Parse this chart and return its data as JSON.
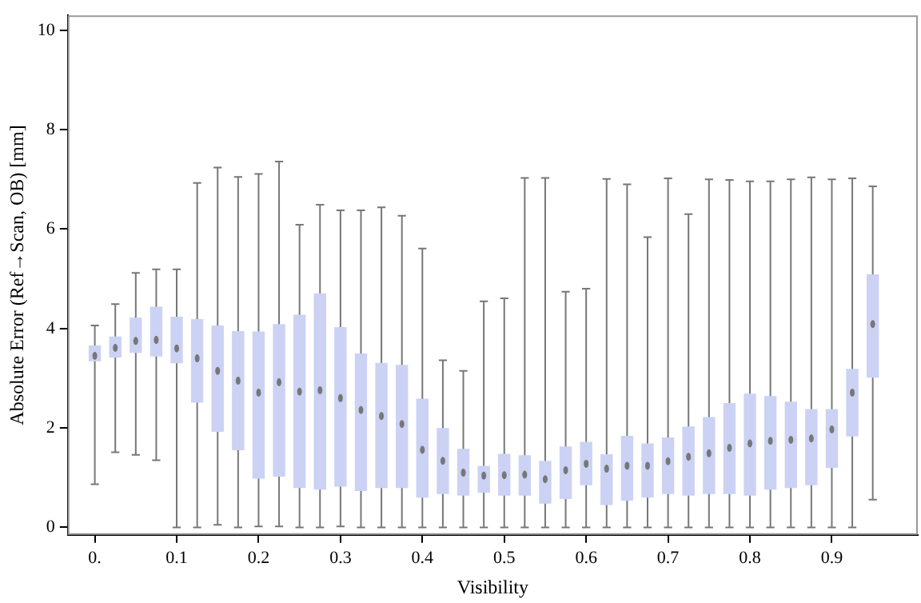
{
  "chart_data": {
    "type": "box",
    "xlabel": "Visibility",
    "ylabel": "Absolute Error (Ref→Scan, OB) [mm]",
    "x": [
      0,
      0.025,
      0.05,
      0.075,
      0.1,
      0.125,
      0.15,
      0.175,
      0.2,
      0.225,
      0.25,
      0.275,
      0.3,
      0.325,
      0.35,
      0.375,
      0.4,
      0.425,
      0.45,
      0.475,
      0.5,
      0.525,
      0.55,
      0.575,
      0.6,
      0.625,
      0.65,
      0.675,
      0.7,
      0.725,
      0.75,
      0.775,
      0.8,
      0.825,
      0.85,
      0.875,
      0.9,
      0.925,
      0.95
    ],
    "color": "#cbd2f4",
    "boxes": [
      {
        "low": 0.87,
        "q1": 3.34,
        "median": 3.45,
        "q3": 3.66,
        "high": 4.06
      },
      {
        "low": 1.51,
        "q1": 3.42,
        "median": 3.61,
        "q3": 3.84,
        "high": 4.49
      },
      {
        "low": 1.46,
        "q1": 3.51,
        "median": 3.75,
        "q3": 4.22,
        "high": 5.12
      },
      {
        "low": 1.35,
        "q1": 3.44,
        "median": 3.77,
        "q3": 4.44,
        "high": 5.19
      },
      {
        "low": 0,
        "q1": 3.3,
        "median": 3.6,
        "q3": 4.24,
        "high": 5.19
      },
      {
        "low": 0,
        "q1": 2.51,
        "median": 3.4,
        "q3": 4.19,
        "high": 6.93
      },
      {
        "low": 0.05,
        "q1": 1.92,
        "median": 3.15,
        "q3": 4.06,
        "high": 7.24
      },
      {
        "low": 0,
        "q1": 1.55,
        "median": 2.95,
        "q3": 3.95,
        "high": 7.05
      },
      {
        "low": 0.02,
        "q1": 0.98,
        "median": 2.71,
        "q3": 3.94,
        "high": 7.11
      },
      {
        "low": 0.02,
        "q1": 1.02,
        "median": 2.92,
        "q3": 4.09,
        "high": 7.36
      },
      {
        "low": 0,
        "q1": 0.79,
        "median": 2.73,
        "q3": 4.28,
        "high": 6.09
      },
      {
        "low": 0,
        "q1": 0.76,
        "median": 2.76,
        "q3": 4.71,
        "high": 6.49
      },
      {
        "low": 0.02,
        "q1": 0.82,
        "median": 2.6,
        "q3": 4.03,
        "high": 6.38
      },
      {
        "low": 0,
        "q1": 0.73,
        "median": 2.36,
        "q3": 3.5,
        "high": 6.38
      },
      {
        "low": 0,
        "q1": 0.79,
        "median": 2.24,
        "q3": 3.31,
        "high": 6.44
      },
      {
        "low": 0,
        "q1": 0.79,
        "median": 2.08,
        "q3": 3.27,
        "high": 6.27
      },
      {
        "low": 0,
        "q1": 0.6,
        "median": 1.56,
        "q3": 2.59,
        "high": 5.61
      },
      {
        "low": 0,
        "q1": 0.67,
        "median": 1.34,
        "q3": 2.0,
        "high": 3.36
      },
      {
        "low": 0,
        "q1": 0.64,
        "median": 1.1,
        "q3": 1.58,
        "high": 3.15
      },
      {
        "low": 0,
        "q1": 0.7,
        "median": 1.04,
        "q3": 1.24,
        "high": 4.55
      },
      {
        "low": 0,
        "q1": 0.64,
        "median": 1.05,
        "q3": 1.48,
        "high": 4.61
      },
      {
        "low": 0,
        "q1": 0.64,
        "median": 1.06,
        "q3": 1.45,
        "high": 7.03
      },
      {
        "low": 0,
        "q1": 0.48,
        "median": 0.97,
        "q3": 1.34,
        "high": 7.03
      },
      {
        "low": 0,
        "q1": 0.57,
        "median": 1.15,
        "q3": 1.63,
        "high": 4.74
      },
      {
        "low": 0,
        "q1": 0.85,
        "median": 1.28,
        "q3": 1.72,
        "high": 4.8
      },
      {
        "low": 0,
        "q1": 0.45,
        "median": 1.18,
        "q3": 1.47,
        "high": 7.01
      },
      {
        "low": 0,
        "q1": 0.54,
        "median": 1.24,
        "q3": 1.84,
        "high": 6.9
      },
      {
        "low": 0,
        "q1": 0.6,
        "median": 1.24,
        "q3": 1.69,
        "high": 5.84
      },
      {
        "low": 0,
        "q1": 0.67,
        "median": 1.33,
        "q3": 1.81,
        "high": 7.02
      },
      {
        "low": 0,
        "q1": 0.64,
        "median": 1.42,
        "q3": 2.03,
        "high": 6.3
      },
      {
        "low": 0,
        "q1": 0.67,
        "median": 1.49,
        "q3": 2.22,
        "high": 7.0
      },
      {
        "low": 0,
        "q1": 0.67,
        "median": 1.6,
        "q3": 2.5,
        "high": 6.99
      },
      {
        "low": 0,
        "q1": 0.64,
        "median": 1.69,
        "q3": 2.69,
        "high": 6.96
      },
      {
        "low": 0,
        "q1": 0.76,
        "median": 1.74,
        "q3": 2.64,
        "high": 6.96
      },
      {
        "low": 0,
        "q1": 0.79,
        "median": 1.76,
        "q3": 2.53,
        "high": 7.0
      },
      {
        "low": 0,
        "q1": 0.85,
        "median": 1.79,
        "q3": 2.38,
        "high": 7.04
      },
      {
        "low": 0,
        "q1": 1.2,
        "median": 1.97,
        "q3": 2.38,
        "high": 7.0
      },
      {
        "low": 0,
        "q1": 1.83,
        "median": 2.71,
        "q3": 3.19,
        "high": 7.02
      },
      {
        "low": 0.56,
        "q1": 3.01,
        "median": 4.09,
        "q3": 5.09,
        "high": 6.86
      }
    ],
    "xlim": [
      -0.033,
      1.005
    ],
    "xticks": [
      {
        "value": 0,
        "label": "0."
      },
      0.1,
      0.2,
      0.3,
      0.4,
      0.5,
      0.6,
      0.7,
      0.8,
      0.9
    ],
    "ylim": [
      -0.15,
      10.3
    ],
    "yticks": [
      0,
      2,
      4,
      6,
      8,
      10
    ],
    "grid": false,
    "legend": false
  }
}
